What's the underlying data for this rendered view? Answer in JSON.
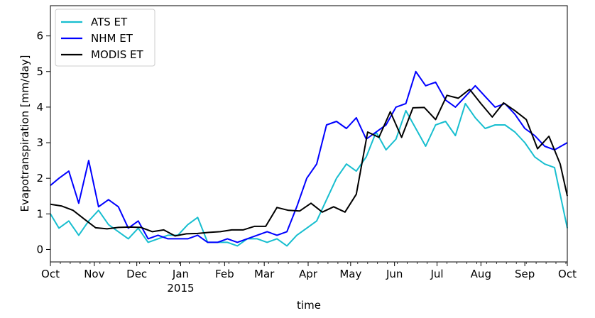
{
  "chart_data": {
    "type": "line",
    "xlabel": "time",
    "ylabel": "Evapotranspiration [mm/day]",
    "x_tick_labels": [
      "Oct",
      "Nov",
      "Dec",
      "Jan",
      "Feb",
      "Mar",
      "Apr",
      "May",
      "Jun",
      "Jul",
      "Aug",
      "Sep",
      "Oct"
    ],
    "x_year_label": "2015",
    "xlim": [
      "2014-10-01",
      "2015-10-01"
    ],
    "ylim": [
      -0.35,
      6.85
    ],
    "y_ticks": [
      0,
      1,
      2,
      3,
      4,
      5,
      6
    ],
    "legend_position": "top-left",
    "series": [
      {
        "name": "ATS ET",
        "color": "#17becf",
        "x": [
          "2014-10-01",
          "2014-10-07",
          "2014-10-14",
          "2014-10-21",
          "2014-10-28",
          "2014-11-04",
          "2014-11-11",
          "2014-11-18",
          "2014-11-25",
          "2014-12-02",
          "2014-12-09",
          "2014-12-16",
          "2014-12-23",
          "2014-12-30",
          "2015-01-06",
          "2015-01-13",
          "2015-01-20",
          "2015-01-27",
          "2015-02-03",
          "2015-02-10",
          "2015-02-17",
          "2015-02-24",
          "2015-03-03",
          "2015-03-10",
          "2015-03-17",
          "2015-03-24",
          "2015-03-31",
          "2015-04-07",
          "2015-04-14",
          "2015-04-21",
          "2015-04-28",
          "2015-05-05",
          "2015-05-12",
          "2015-05-19",
          "2015-05-26",
          "2015-06-02",
          "2015-06-09",
          "2015-06-16",
          "2015-06-23",
          "2015-06-30",
          "2015-07-07",
          "2015-07-14",
          "2015-07-21",
          "2015-07-28",
          "2015-08-04",
          "2015-08-11",
          "2015-08-18",
          "2015-08-25",
          "2015-09-01",
          "2015-09-08",
          "2015-09-15",
          "2015-09-22",
          "2015-10-01"
        ],
        "values": [
          1.0,
          0.6,
          0.8,
          0.4,
          0.8,
          1.1,
          0.7,
          0.5,
          0.3,
          0.6,
          0.2,
          0.3,
          0.4,
          0.4,
          0.7,
          0.9,
          0.2,
          0.2,
          0.2,
          0.1,
          0.3,
          0.3,
          0.2,
          0.3,
          0.1,
          0.4,
          0.6,
          0.8,
          1.4,
          2.0,
          2.4,
          2.2,
          2.6,
          3.3,
          2.8,
          3.1,
          3.9,
          3.4,
          2.9,
          3.5,
          3.6,
          3.2,
          4.1,
          3.7,
          3.4,
          3.5,
          3.5,
          3.3,
          3.0,
          2.6,
          2.4,
          2.3,
          0.6
        ]
      },
      {
        "name": "NHM ET",
        "color": "#0000ff",
        "x": [
          "2014-10-01",
          "2014-10-07",
          "2014-10-14",
          "2014-10-21",
          "2014-10-28",
          "2014-11-04",
          "2014-11-11",
          "2014-11-18",
          "2014-11-25",
          "2014-12-02",
          "2014-12-09",
          "2014-12-16",
          "2014-12-23",
          "2014-12-30",
          "2015-01-06",
          "2015-01-13",
          "2015-01-20",
          "2015-01-27",
          "2015-02-03",
          "2015-02-10",
          "2015-02-17",
          "2015-02-24",
          "2015-03-03",
          "2015-03-10",
          "2015-03-17",
          "2015-03-24",
          "2015-03-31",
          "2015-04-07",
          "2015-04-14",
          "2015-04-21",
          "2015-04-28",
          "2015-05-05",
          "2015-05-12",
          "2015-05-19",
          "2015-05-26",
          "2015-06-02",
          "2015-06-09",
          "2015-06-16",
          "2015-06-23",
          "2015-06-30",
          "2015-07-07",
          "2015-07-14",
          "2015-07-21",
          "2015-07-28",
          "2015-08-04",
          "2015-08-11",
          "2015-08-18",
          "2015-08-25",
          "2015-09-01",
          "2015-09-08",
          "2015-09-15",
          "2015-09-22",
          "2015-10-01"
        ],
        "values": [
          1.8,
          2.0,
          2.2,
          1.3,
          2.5,
          1.2,
          1.4,
          1.2,
          0.6,
          0.8,
          0.3,
          0.4,
          0.3,
          0.3,
          0.3,
          0.4,
          0.2,
          0.2,
          0.3,
          0.2,
          0.3,
          0.4,
          0.5,
          0.4,
          0.5,
          1.2,
          2.0,
          2.4,
          3.5,
          3.6,
          3.4,
          3.7,
          3.1,
          3.3,
          3.5,
          4.0,
          4.1,
          5.0,
          4.6,
          4.7,
          4.2,
          4.0,
          4.3,
          4.6,
          4.3,
          4.0,
          4.1,
          3.8,
          3.4,
          3.2,
          2.9,
          2.8,
          3.0
        ]
      },
      {
        "name": "MODIS ET",
        "color": "#000000",
        "x": [
          "2014-10-01",
          "2014-10-09",
          "2014-10-17",
          "2014-10-25",
          "2014-11-02",
          "2014-11-10",
          "2014-11-18",
          "2014-11-26",
          "2014-12-04",
          "2014-12-12",
          "2014-12-20",
          "2014-12-28",
          "2015-01-05",
          "2015-01-13",
          "2015-01-21",
          "2015-01-29",
          "2015-02-06",
          "2015-02-14",
          "2015-02-22",
          "2015-03-02",
          "2015-03-10",
          "2015-03-18",
          "2015-03-26",
          "2015-04-03",
          "2015-04-11",
          "2015-04-19",
          "2015-04-27",
          "2015-05-05",
          "2015-05-13",
          "2015-05-21",
          "2015-05-29",
          "2015-06-06",
          "2015-06-14",
          "2015-06-22",
          "2015-06-30",
          "2015-07-08",
          "2015-07-16",
          "2015-07-24",
          "2015-08-01",
          "2015-08-09",
          "2015-08-17",
          "2015-08-25",
          "2015-09-02",
          "2015-09-10",
          "2015-09-18",
          "2015-09-26",
          "2015-10-01"
        ],
        "values": [
          1.27,
          1.22,
          1.1,
          0.85,
          0.61,
          0.58,
          0.62,
          0.63,
          0.62,
          0.5,
          0.55,
          0.38,
          0.44,
          0.45,
          0.48,
          0.5,
          0.55,
          0.55,
          0.65,
          0.65,
          1.18,
          1.1,
          1.08,
          1.3,
          1.05,
          1.2,
          1.05,
          1.55,
          3.3,
          3.15,
          3.87,
          3.15,
          3.98,
          3.99,
          3.65,
          4.33,
          4.25,
          4.5,
          4.1,
          3.72,
          4.12,
          3.9,
          3.65,
          2.83,
          3.18,
          2.4,
          1.5
        ]
      }
    ]
  }
}
